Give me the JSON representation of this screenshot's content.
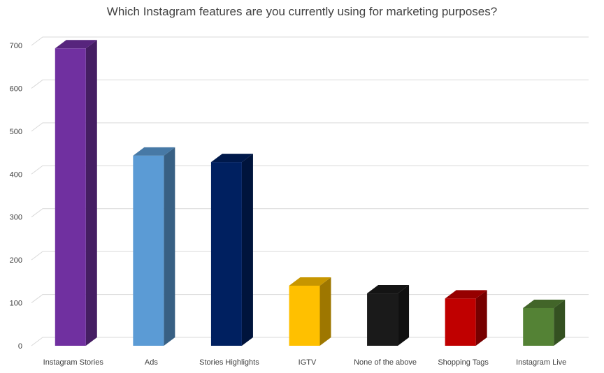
{
  "chart_data": {
    "type": "bar",
    "title": "Which Instagram features are you currently using for marketing purposes?",
    "categories": [
      "Instagram Stories",
      "Ads",
      "Stories Highlights",
      "IGTV",
      "None of the above",
      "Shopping Tags",
      "Instagram Live"
    ],
    "values": [
      693,
      443,
      428,
      140,
      122,
      110,
      88
    ],
    "colors": [
      "#7030a0",
      "#5b9bd5",
      "#002060",
      "#ffc000",
      "#1a1a1a",
      "#c00000",
      "#548235"
    ],
    "yticks": [
      0,
      100,
      200,
      300,
      400,
      500,
      600,
      700
    ],
    "ylim": [
      0,
      750
    ],
    "grid": true,
    "style": "3d-column"
  }
}
